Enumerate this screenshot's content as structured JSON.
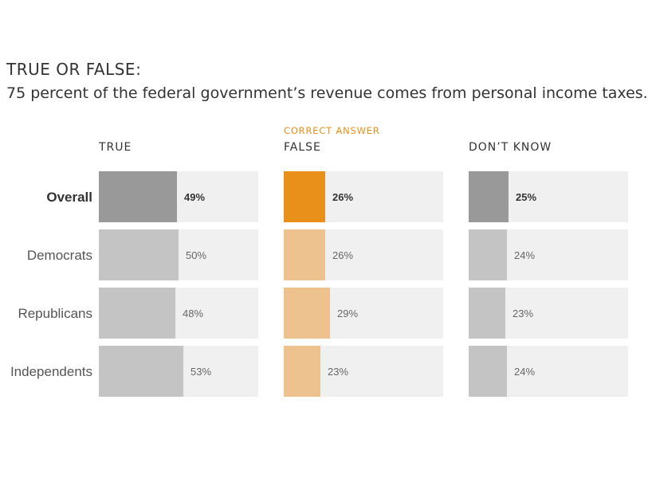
{
  "title": "TRUE OR FALSE:",
  "subtitle": "75 percent of the federal government’s revenue comes from personal income taxes.",
  "chart_data": {
    "type": "bar",
    "orientation": "horizontal",
    "layout": "small-multiples",
    "xlim": [
      0,
      100
    ],
    "correct_answer_tag": "CORRECT ANSWER",
    "correct_column": "FALSE",
    "rows": [
      "Overall",
      "Democrats",
      "Republicans",
      "Independents"
    ],
    "highlight_row": "Overall",
    "columns": [
      {
        "name": "TRUE",
        "values": [
          49,
          50,
          48,
          53
        ],
        "labels": [
          "49%",
          "50%",
          "48%",
          "53%"
        ]
      },
      {
        "name": "FALSE",
        "values": [
          26,
          26,
          29,
          23
        ],
        "labels": [
          "26%",
          "26%",
          "29%",
          "23%"
        ]
      },
      {
        "name": "DON’T KNOW",
        "values": [
          25,
          24,
          23,
          24
        ],
        "labels": [
          "25%",
          "24%",
          "23%",
          "24%"
        ]
      }
    ],
    "colors": {
      "track": "#f0f0f0",
      "overall_bar": "#999999",
      "group_bar": "#c4c4c4",
      "correct_overall_bar": "#e8901a",
      "correct_group_bar": "#eec28f"
    }
  }
}
